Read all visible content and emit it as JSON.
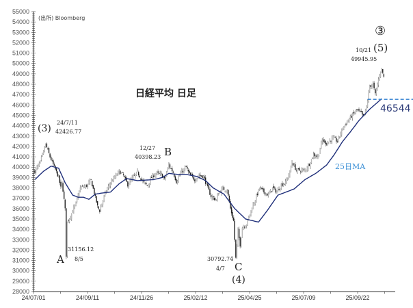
{
  "chart_data": {
    "type": "candlestick",
    "title": "日経平均 日足",
    "source": "(出所) Bloomberg",
    "ylim": [
      28000,
      55000
    ],
    "y_ticks": [
      55000,
      54000,
      53000,
      52000,
      51000,
      50000,
      49000,
      48000,
      47000,
      46000,
      45000,
      44000,
      43000,
      42000,
      41000,
      40000,
      39000,
      38000,
      37000,
      36000,
      35000,
      34000,
      33000,
      32000,
      31000,
      30000,
      29000,
      28000
    ],
    "x_ticks": [
      {
        "label": "24/07/01",
        "day": 0
      },
      {
        "label": "24/09/11",
        "day": 50
      },
      {
        "label": "24/11/26",
        "day": 100
      },
      {
        "label": "25/02/12",
        "day": 150
      },
      {
        "label": "25/04/25",
        "day": 200
      },
      {
        "label": "25/07/09",
        "day": 250
      },
      {
        "label": "25/09/22",
        "day": 300
      }
    ],
    "x_days_total": 334,
    "close_anchors": [
      [
        0,
        39600
      ],
      [
        5,
        40500
      ],
      [
        8,
        41500
      ],
      [
        10,
        42200
      ],
      [
        14,
        41000
      ],
      [
        18,
        40000
      ],
      [
        22,
        39000
      ],
      [
        24,
        38000
      ],
      [
        25,
        38500
      ],
      [
        26,
        37800
      ],
      [
        28,
        35900
      ],
      [
        29,
        31500
      ],
      [
        30,
        34700
      ],
      [
        33,
        35300
      ],
      [
        38,
        36500
      ],
      [
        42,
        38000
      ],
      [
        48,
        38200
      ],
      [
        52,
        38700
      ],
      [
        55,
        37500
      ],
      [
        58,
        36200
      ],
      [
        60,
        35800
      ],
      [
        62,
        36500
      ],
      [
        66,
        37700
      ],
      [
        70,
        38500
      ],
      [
        74,
        39000
      ],
      [
        78,
        39600
      ],
      [
        82,
        39200
      ],
      [
        86,
        38300
      ],
      [
        90,
        38900
      ],
      [
        95,
        39500
      ],
      [
        100,
        38600
      ],
      [
        104,
        38200
      ],
      [
        108,
        39000
      ],
      [
        112,
        39400
      ],
      [
        117,
        39300
      ],
      [
        120,
        38800
      ],
      [
        124,
        40200
      ],
      [
        128,
        39500
      ],
      [
        131,
        38600
      ],
      [
        135,
        39400
      ],
      [
        140,
        40000
      ],
      [
        143,
        39300
      ],
      [
        148,
        38800
      ],
      [
        152,
        39200
      ],
      [
        156,
        39100
      ],
      [
        160,
        38000
      ],
      [
        163,
        37200
      ],
      [
        168,
        36800
      ],
      [
        170,
        37500
      ],
      [
        174,
        37900
      ],
      [
        178,
        37800
      ],
      [
        181,
        36000
      ],
      [
        184,
        34800
      ],
      [
        186,
        31200
      ],
      [
        188,
        33800
      ],
      [
        190,
        32500
      ],
      [
        192,
        34200
      ],
      [
        196,
        34500
      ],
      [
        200,
        35800
      ],
      [
        204,
        36900
      ],
      [
        208,
        38000
      ],
      [
        212,
        37600
      ],
      [
        216,
        37300
      ],
      [
        220,
        38000
      ],
      [
        224,
        37600
      ],
      [
        228,
        38300
      ],
      [
        232,
        38500
      ],
      [
        236,
        39500
      ],
      [
        238,
        40500
      ],
      [
        242,
        39700
      ],
      [
        250,
        39700
      ],
      [
        254,
        40300
      ],
      [
        258,
        41200
      ],
      [
        262,
        41000
      ],
      [
        266,
        42600
      ],
      [
        270,
        42300
      ],
      [
        276,
        42800
      ],
      [
        280,
        42500
      ],
      [
        285,
        43800
      ],
      [
        292,
        44800
      ],
      [
        298,
        45500
      ],
      [
        302,
        45200
      ],
      [
        304,
        44800
      ],
      [
        307,
        45800
      ],
      [
        310,
        47800
      ],
      [
        313,
        48000
      ],
      [
        315,
        47000
      ],
      [
        317,
        48000
      ],
      [
        320,
        49300
      ],
      [
        321,
        49500
      ],
      [
        323,
        48700
      ]
    ],
    "ma25": {
      "name": "25日MA",
      "color": "#1f2f7a",
      "anchors": [
        [
          0,
          38800
        ],
        [
          8,
          39600
        ],
        [
          15,
          40100
        ],
        [
          22,
          39900
        ],
        [
          28,
          38500
        ],
        [
          35,
          37300
        ],
        [
          40,
          37100
        ],
        [
          45,
          37100
        ],
        [
          50,
          36900
        ],
        [
          56,
          37400
        ],
        [
          62,
          37500
        ],
        [
          70,
          37600
        ],
        [
          78,
          38400
        ],
        [
          85,
          38900
        ],
        [
          95,
          38700
        ],
        [
          110,
          38800
        ],
        [
          118,
          39000
        ],
        [
          124,
          39400
        ],
        [
          132,
          39300
        ],
        [
          140,
          39300
        ],
        [
          150,
          39100
        ],
        [
          158,
          38700
        ],
        [
          165,
          38000
        ],
        [
          175,
          37400
        ],
        [
          185,
          36000
        ],
        [
          195,
          35000
        ],
        [
          207,
          34700
        ],
        [
          215,
          35800
        ],
        [
          225,
          37300
        ],
        [
          240,
          37900
        ],
        [
          250,
          38800
        ],
        [
          260,
          39400
        ],
        [
          270,
          40200
        ],
        [
          277,
          41200
        ],
        [
          285,
          42500
        ],
        [
          292,
          43400
        ],
        [
          300,
          44500
        ],
        [
          310,
          45600
        ],
        [
          321,
          46600
        ]
      ]
    },
    "annotations": {
      "wave3_paren": "(3)",
      "peak1_date": "24/7/11",
      "peak1_value": "42426.77",
      "a_label": "A",
      "a_value": "31156.12",
      "a_date": "8/5",
      "b_date": "12/27",
      "b_value": "40398.23",
      "b_label": "B",
      "c_value": "30792.74",
      "c_date": "4/7",
      "c_label": "C",
      "wave4_paren": "(4)",
      "circle3": "③",
      "wave5_paren": "(5)",
      "peak2_date": "10/21",
      "peak2_value": "49945.95",
      "ma_label": "25日MA",
      "support_value": "46544"
    },
    "support_line": {
      "value": 46544,
      "color": "#2e7fd0"
    },
    "label_colors": {
      "ma_label": "#3a8fd6",
      "support": "#2d3b78"
    }
  }
}
